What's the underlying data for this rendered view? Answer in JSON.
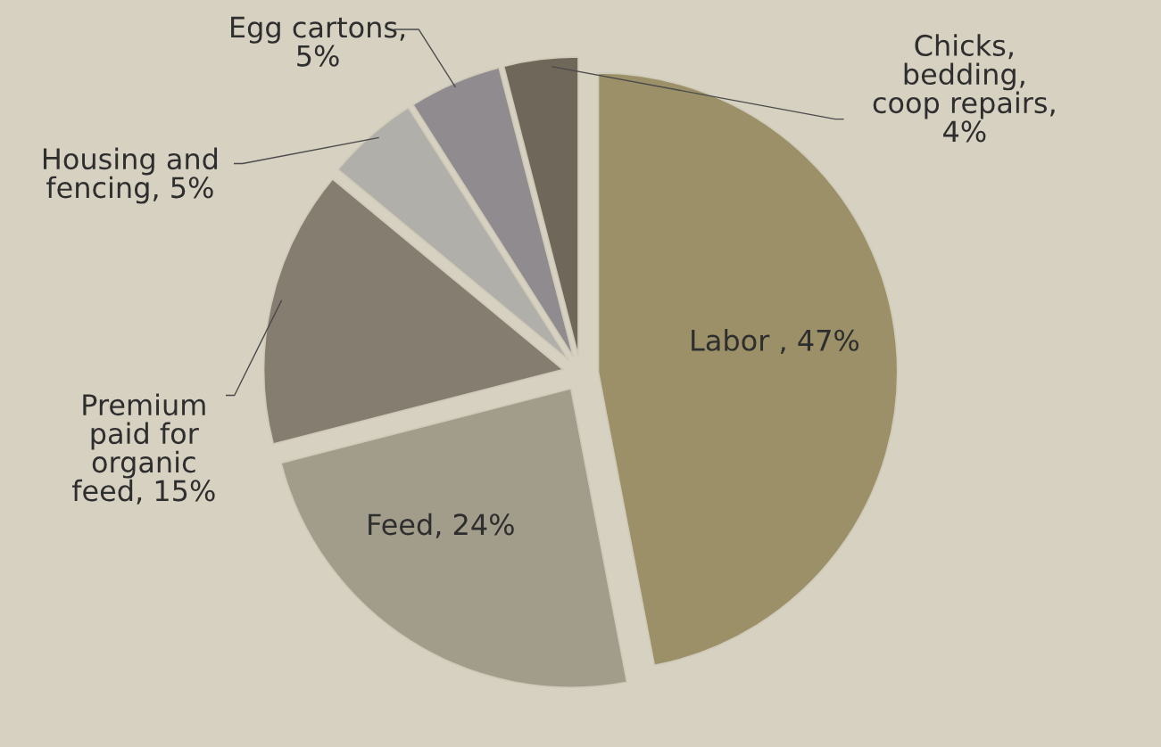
{
  "chart_data": {
    "type": "pie",
    "categories": [
      "Labor , 47%",
      "Feed, 24%",
      "Premium\npaid for\norganic\nfeed, 15%",
      "Housing and\nfencing, 5%",
      "Egg cartons,\n5%",
      "Chicks,\nbedding,\ncoop repairs,\n4%"
    ],
    "values": [
      47,
      24,
      15,
      5,
      5,
      4
    ],
    "colors": [
      "#9b9068",
      "#a29c8a",
      "#867d71",
      "#b1afa9",
      "#8f8b8f",
      "#6f6759"
    ]
  }
}
